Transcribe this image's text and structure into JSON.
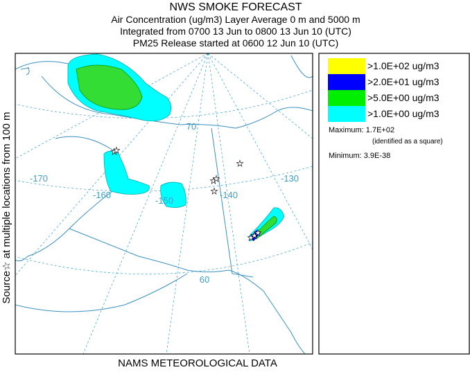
{
  "header": {
    "lines": [
      "NWS SMOKE FORECAST",
      "Air Concentration (ug/m3) Layer Average    0 m and  5000 m",
      "Integrated from 0700 13 Jun to 0800 13 Jun 10 (UTC)",
      "PM25 Release started at 0600 12 Jun 10 (UTC)"
    ]
  },
  "side_label": "Source☆  at multiple locations    from   100 m",
  "footer": "NAMS METEOROLOGICAL DATA",
  "legend": {
    "entries": [
      {
        "label": ">1.0E+02 ug/m3",
        "color": "#ffff00"
      },
      {
        "label": ">2.0E+01 ug/m3",
        "color": "#0000ff"
      },
      {
        "label": ">5.0E+00 ug/m3",
        "color": "#00ee00"
      },
      {
        "label": ">1.0E+00 ug/m3",
        "color": "#00ffff"
      }
    ],
    "maximum": "Maximum: 1.7E+02",
    "maximum_note": "(identified as a square)",
    "minimum": "Minimum: 3.9E-38"
  },
  "map": {
    "labels": [
      "-170",
      "-160",
      "-150",
      "-140",
      "-130",
      "70",
      "60"
    ]
  }
}
